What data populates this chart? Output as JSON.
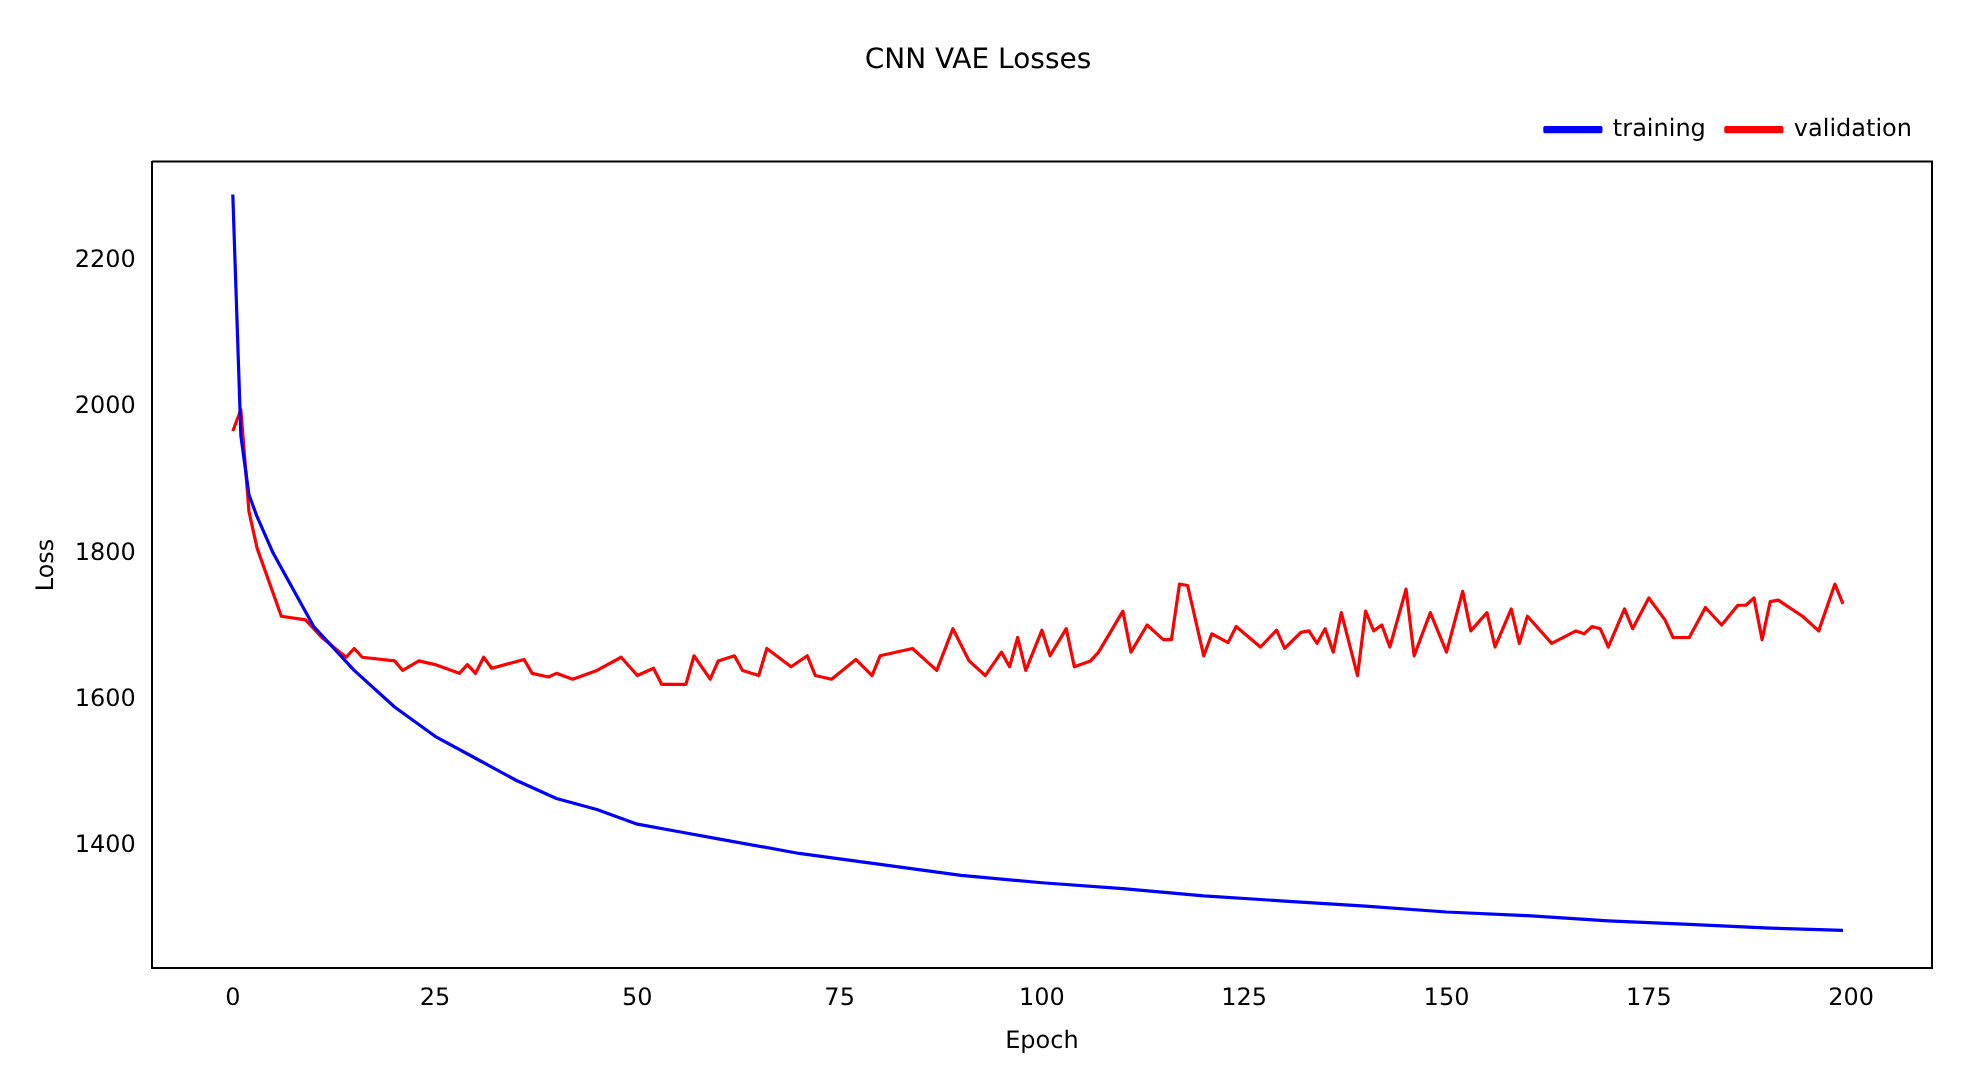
{
  "chart_data": {
    "type": "line",
    "title": "CNN VAE Losses",
    "xlabel": "Epoch",
    "ylabel": "Loss",
    "xlim": [
      -10,
      210
    ],
    "ylim": [
      1233,
      2335
    ],
    "xticks": [
      0,
      25,
      50,
      75,
      100,
      125,
      150,
      175,
      200
    ],
    "yticks": [
      1400,
      1600,
      1800,
      2000,
      2200
    ],
    "grid": false,
    "legend": "top right",
    "marker": "none",
    "line_style": "solid",
    "series": [
      {
        "name": "training",
        "color": "#0000ff",
        "x": [
          0,
          1,
          2,
          3,
          5,
          8,
          10,
          15,
          20,
          25,
          30,
          35,
          40,
          45,
          50,
          55,
          60,
          70,
          80,
          90,
          100,
          110,
          120,
          130,
          140,
          150,
          160,
          170,
          180,
          190,
          199
        ],
        "values": [
          2290,
          1960,
          1880,
          1850,
          1800,
          1740,
          1700,
          1640,
          1590,
          1550,
          1520,
          1490,
          1465,
          1450,
          1430,
          1420,
          1410,
          1390,
          1375,
          1360,
          1350,
          1342,
          1332,
          1325,
          1318,
          1310,
          1305,
          1298,
          1293,
          1288,
          1285
        ]
      },
      {
        "name": "validation",
        "color": "#ff0000",
        "x": [
          0,
          1,
          2,
          3,
          6,
          9,
          11,
          14,
          15,
          16,
          20,
          21,
          23,
          25,
          28,
          29,
          30,
          31,
          32,
          36,
          37,
          39,
          40,
          42,
          45,
          48,
          50,
          52,
          53,
          56,
          57,
          59,
          60,
          62,
          63,
          65,
          66,
          69,
          71,
          72,
          74,
          77,
          79,
          80,
          84,
          87,
          89,
          91,
          93,
          95,
          96,
          97,
          98,
          100,
          101,
          103,
          104,
          106,
          107,
          110,
          111,
          113,
          115,
          116,
          117,
          118,
          120,
          121,
          123,
          124,
          127,
          129,
          130,
          132,
          133,
          134,
          135,
          136,
          137,
          139,
          140,
          141,
          142,
          143,
          145,
          146,
          148,
          150,
          152,
          153,
          155,
          156,
          158,
          159,
          160,
          163,
          166,
          167,
          168,
          169,
          170,
          172,
          173,
          175,
          177,
          178,
          180,
          182,
          184,
          186,
          187,
          188,
          189,
          190,
          191,
          194,
          196,
          198,
          199
        ],
        "values": [
          1967,
          1996,
          1857,
          1807,
          1714,
          1709,
          1685,
          1658,
          1670,
          1658,
          1653,
          1640,
          1653,
          1648,
          1636,
          1648,
          1636,
          1658,
          1643,
          1655,
          1636,
          1631,
          1636,
          1628,
          1640,
          1658,
          1633,
          1643,
          1621,
          1621,
          1660,
          1628,
          1653,
          1660,
          1640,
          1633,
          1670,
          1645,
          1660,
          1633,
          1628,
          1655,
          1633,
          1660,
          1670,
          1640,
          1697,
          1653,
          1633,
          1665,
          1645,
          1685,
          1640,
          1695,
          1660,
          1697,
          1645,
          1653,
          1665,
          1721,
          1665,
          1702,
          1682,
          1682,
          1758,
          1756,
          1660,
          1690,
          1678,
          1700,
          1672,
          1695,
          1670,
          1692,
          1694,
          1677,
          1697,
          1665,
          1719,
          1633,
          1721,
          1694,
          1702,
          1672,
          1751,
          1660,
          1719,
          1665,
          1748,
          1694,
          1719,
          1672,
          1724,
          1677,
          1714,
          1677,
          1694,
          1690,
          1700,
          1697,
          1672,
          1724,
          1697,
          1739,
          1709,
          1685,
          1685,
          1726,
          1702,
          1729,
          1729,
          1739,
          1682,
          1734,
          1736,
          1714,
          1694,
          1758,
          1731
        ]
      }
    ]
  }
}
